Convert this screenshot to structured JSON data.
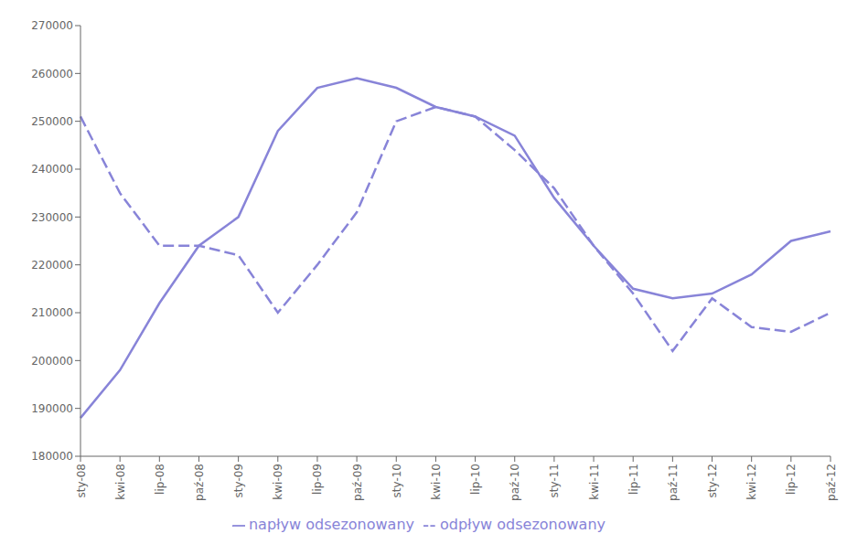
{
  "chart_data": {
    "type": "line",
    "categories": [
      "sty-08",
      "kwi-08",
      "lip-08",
      "paź-08",
      "sty-09",
      "kwi-09",
      "lip-09",
      "paź-09",
      "sty-10",
      "kwi-10",
      "lip-10",
      "paź-10",
      "sty-11",
      "kwi-11",
      "lip-11",
      "paź-11",
      "sty-12",
      "kwi-12",
      "lip-12",
      "paź-12"
    ],
    "series": [
      {
        "name": "napływ odsezonowany",
        "color": "#8884d8",
        "line_style": "solid",
        "values": [
          188000,
          198000,
          212000,
          224000,
          230000,
          248000,
          257000,
          259000,
          257000,
          253000,
          251000,
          247000,
          234000,
          224000,
          215000,
          213000,
          214000,
          218000,
          225000,
          227000
        ]
      },
      {
        "name": "odpływ odsezonowany",
        "color": "#8884d8",
        "line_style": "dashed",
        "values": [
          251000,
          235000,
          224000,
          224000,
          222000,
          210000,
          220000,
          231000,
          250000,
          253000,
          251000,
          244000,
          236000,
          224000,
          214000,
          202000,
          213000,
          207000,
          206000,
          210000
        ]
      }
    ],
    "ylim": [
      180000,
      270000
    ],
    "yticks": [
      180000,
      190000,
      200000,
      210000,
      220000,
      230000,
      240000,
      250000,
      260000,
      270000
    ],
    "grid": false,
    "legend": "bottom"
  }
}
